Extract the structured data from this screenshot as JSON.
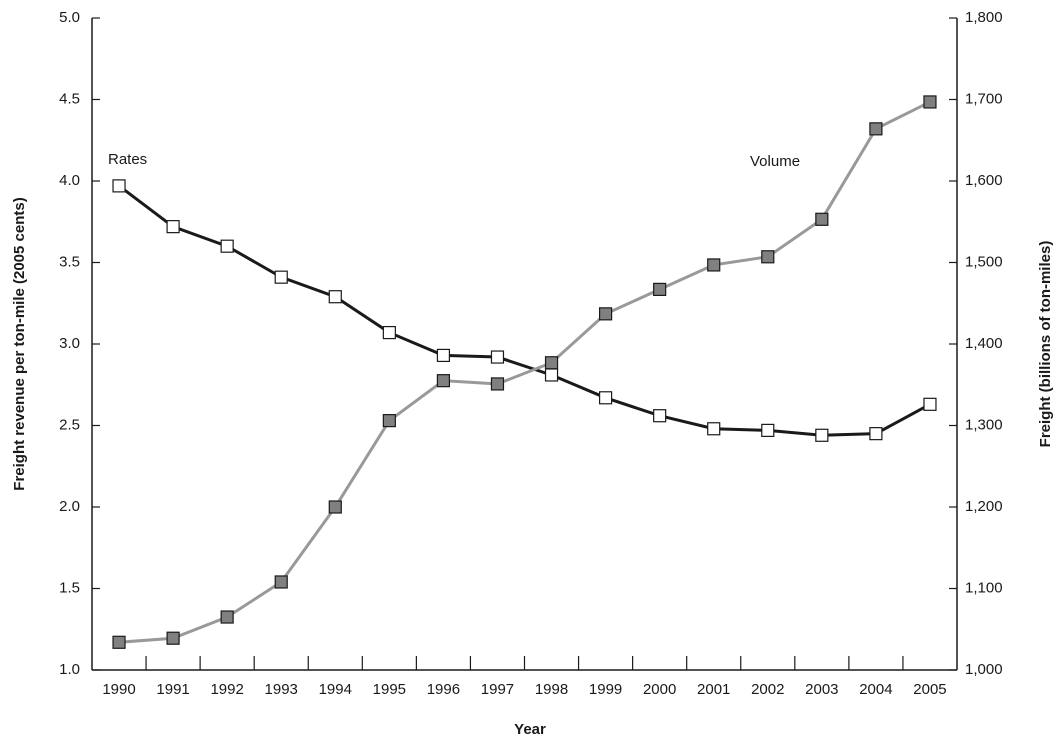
{
  "chart_data": {
    "type": "line",
    "annotations": [
      "Rates",
      "Volume"
    ],
    "x_label": "Year",
    "y_label": "Freight revenue per ton-mile (2005 cents)",
    "y2_label": "Freight (billions of ton-miles)",
    "categories": [
      "1990",
      "1991",
      "1992",
      "1993",
      "1994",
      "1995",
      "1996",
      "1997",
      "1998",
      "1999",
      "2000",
      "2001",
      "2002",
      "2003",
      "2004",
      "2005"
    ],
    "series": [
      {
        "name": "Rates",
        "color": "#1a1a1a",
        "marker_color": "#ffffff",
        "axis": "y",
        "values": [
          3.97,
          3.72,
          3.6,
          3.41,
          3.29,
          3.07,
          2.93,
          2.92,
          2.81,
          2.67,
          2.56,
          2.48,
          2.47,
          2.44,
          2.45,
          2.63
        ]
      },
      {
        "name": "Volume",
        "color": "#999999",
        "marker_color": "#808080",
        "axis": "y2",
        "values": [
          1034,
          1039,
          1065,
          1108,
          1200,
          1306,
          1355,
          1351,
          1377,
          1437,
          1467,
          1497,
          1507,
          1553,
          1664,
          1697
        ]
      }
    ],
    "ylim": [
      1,
      5
    ],
    "yticks": [
      {
        "value": 1,
        "label": "1.0"
      },
      1.5,
      {
        "value": 2,
        "label": "2.0"
      },
      2.5,
      {
        "value": 3,
        "label": "3.0"
      },
      3.5,
      {
        "value": 4,
        "label": "4.0"
      },
      4.5,
      {
        "value": 5,
        "label": "5.0"
      }
    ],
    "y2lim": [
      1000,
      1800
    ],
    "y2ticks": [
      {
        "value": 1000,
        "label": "1,000"
      },
      {
        "value": 1100,
        "label": "1,100"
      },
      {
        "value": 1200,
        "label": "1,200"
      },
      {
        "value": 1300,
        "label": "1,300"
      },
      {
        "value": 1400,
        "label": "1,400"
      },
      {
        "value": 1500,
        "label": "1,500"
      },
      {
        "value": 1600,
        "label": "1,600"
      },
      {
        "value": 1700,
        "label": "1,700"
      },
      {
        "value": 1800,
        "label": "1,800"
      }
    ]
  }
}
